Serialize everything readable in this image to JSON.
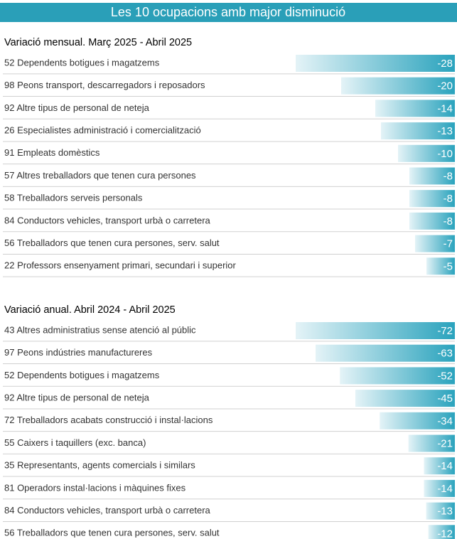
{
  "title": "Les 10 ocupacions amb major disminució",
  "chart_data": [
    {
      "type": "bar",
      "orientation": "horizontal",
      "title": "Variació mensual. Març 2025 - Abril 2025",
      "categories": [
        "52 Dependents botigues i magatzems",
        "98 Peons transport, descarregadors i reposadors",
        "92 Altre tipus de personal de neteja",
        "26 Especialistes administració i comercialització",
        "91 Empleats domèstics",
        "57 Altres treballadors que tenen cura persones",
        "58 Treballadors serveis personals",
        "84 Conductors vehicles, transport urbà o carretera",
        "56 Treballadors que tenen cura persones, serv. salut",
        "22 Professors ensenyament primari, secundari i superior"
      ],
      "values": [
        -28,
        -20,
        -14,
        -13,
        -10,
        -8,
        -8,
        -8,
        -7,
        -5
      ],
      "color": "#2aa3bd",
      "xlim": [
        -28,
        0
      ]
    },
    {
      "type": "bar",
      "orientation": "horizontal",
      "title": "Variació anual.  Abril 2024 - Abril 2025",
      "categories": [
        "43 Altres administratius sense atenció al públic",
        "97 Peons indústries manufactureres",
        "52 Dependents botigues i magatzems",
        "92 Altre tipus de personal de neteja",
        "72 Treballadors acabats construcció i instal·lacions",
        "55 Caixers i taquillers (exc. banca)",
        "35 Representants, agents comercials i similars",
        "81 Operadors instal·lacions i màquines fixes",
        "84 Conductors vehicles, transport urbà o carretera",
        "56 Treballadors que tenen cura persones, serv. salut"
      ],
      "values": [
        -72,
        -63,
        -52,
        -45,
        -34,
        -21,
        -14,
        -14,
        -13,
        -12
      ],
      "color": "#2aa3bd",
      "xlim": [
        -72,
        0
      ]
    }
  ]
}
